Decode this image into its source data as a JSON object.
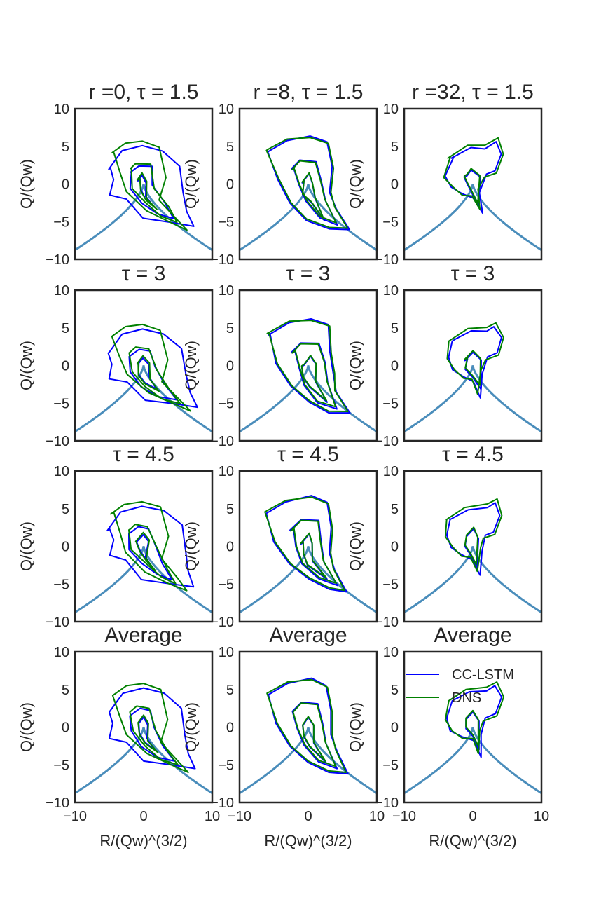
{
  "chart_data": {
    "type": "line",
    "description_free": true,
    "row_titles": [
      [
        "r =0, τ = 1.5",
        "r =8, τ = 1.5",
        "r =32, τ = 1.5"
      ],
      [
        "τ = 3",
        "τ = 3",
        "τ = 3"
      ],
      [
        "τ = 4.5",
        "τ = 4.5",
        "τ = 4.5"
      ],
      [
        "Average",
        "Average",
        "Average"
      ]
    ],
    "xlabel": "R/(Qw)^(3/2)",
    "ylabel": "Q/(Qw)",
    "xlim": [
      -10,
      10
    ],
    "ylim": [
      -10,
      10
    ],
    "xticks": [
      "−10",
      "0",
      "10"
    ],
    "yticks": [
      "10",
      "5",
      "0",
      "−5",
      "−10"
    ],
    "legend": {
      "location": "top-right",
      "entries": [
        {
          "name": "CC-LSTM",
          "color": "#0000ff"
        },
        {
          "name": "DNS",
          "color": "#008000"
        }
      ]
    },
    "vieillefosse_color": "#4a8dbb",
    "vieillefosse_x": [
      -10,
      -8,
      -6,
      -4,
      -3,
      -2,
      -1,
      -0.5,
      0,
      0.5,
      1,
      2,
      3,
      4,
      6,
      8,
      10
    ],
    "series_colors": {
      "CC-LSTM": "#0000ff",
      "DNS": "#008000"
    },
    "columns": [
      {
        "r": "0",
        "outer": {
          "cx": 0.5,
          "cy": 0,
          "ax": [
            -5,
            -2,
            6,
            8,
            6,
            3,
            1,
            -2
          ],
          "ay": [
            2,
            6,
            3,
            -1,
            -5,
            -5,
            -2,
            -2
          ]
        },
        "DNS": [
          [
            [
              -4.5,
              4.2
            ],
            [
              -2.5,
              5.5
            ],
            [
              0,
              5.8
            ],
            [
              2.5,
              5
            ],
            [
              3.5,
              1
            ],
            [
              2.5,
              -2
            ],
            [
              5,
              -4.5
            ],
            [
              6.5,
              -6
            ],
            [
              4,
              -5
            ],
            [
              0.5,
              -3.5
            ],
            [
              -2.5,
              -1
            ],
            [
              -3.5,
              1.5
            ],
            [
              -4.5,
              4.2
            ]
          ],
          [
            [
              -2,
              2
            ],
            [
              -1,
              2.8
            ],
            [
              0.8,
              2.5
            ],
            [
              1.8,
              -0.5
            ],
            [
              3.5,
              -3.2
            ],
            [
              5,
              -5
            ],
            [
              2.5,
              -4.3
            ],
            [
              0.2,
              -2.5
            ],
            [
              -1.5,
              -0.5
            ],
            [
              -2,
              2
            ]
          ],
          [
            [
              -0.8,
              0.6
            ],
            [
              0,
              1.6
            ],
            [
              0.7,
              0.5
            ],
            [
              0.6,
              -1.8
            ],
            [
              2,
              -3.3
            ],
            [
              0.3,
              -2.2
            ],
            [
              -0.6,
              -1
            ],
            [
              -0.8,
              0.6
            ]
          ]
        ],
        "CC-LSTM": [
          [
            [
              -5,
              2
            ],
            [
              -3,
              4.5
            ],
            [
              0,
              5.2
            ],
            [
              3,
              4.5
            ],
            [
              5.5,
              2.5
            ],
            [
              6,
              -1
            ],
            [
              6.5,
              -3.5
            ],
            [
              7.5,
              -5.5
            ],
            [
              4,
              -5
            ],
            [
              0,
              -4.5
            ],
            [
              -2.5,
              -2
            ],
            [
              -5,
              -1.5
            ],
            [
              -4.5,
              0.5
            ],
            [
              -5,
              2
            ]
          ],
          [
            [
              -2,
              1.5
            ],
            [
              -0.5,
              2.5
            ],
            [
              1,
              2.2
            ],
            [
              1.5,
              0
            ],
            [
              2.8,
              -2.5
            ],
            [
              4.5,
              -4.5
            ],
            [
              2,
              -4
            ],
            [
              -0.3,
              -2.6
            ],
            [
              -1.8,
              -0.5
            ],
            [
              -2,
              1.5
            ]
          ],
          [
            [
              -0.7,
              0.5
            ],
            [
              0,
              1.3
            ],
            [
              0.6,
              0.3
            ],
            [
              0.5,
              -1.5
            ],
            [
              1.6,
              -3
            ],
            [
              0.2,
              -2
            ],
            [
              -0.6,
              -0.8
            ],
            [
              -0.7,
              0.5
            ]
          ]
        ]
      },
      {
        "r": "8",
        "DNS": [
          [
            [
              -6,
              4.5
            ],
            [
              -3,
              6
            ],
            [
              0.5,
              6.3
            ],
            [
              2.8,
              5.3
            ],
            [
              3.5,
              2
            ],
            [
              3.5,
              -1
            ],
            [
              4,
              -3
            ],
            [
              5.5,
              -6
            ],
            [
              3,
              -5.8
            ],
            [
              0,
              -4.5
            ],
            [
              -2.5,
              -2.5
            ],
            [
              -4.5,
              0.5
            ],
            [
              -6,
              4.5
            ]
          ],
          [
            [
              -2.2,
              2
            ],
            [
              -1,
              3.2
            ],
            [
              1.3,
              3
            ],
            [
              2,
              0.5
            ],
            [
              2.5,
              -2
            ],
            [
              4,
              -5.2
            ],
            [
              1.5,
              -4.4
            ],
            [
              -0.5,
              -2.3
            ],
            [
              -1.5,
              -0.2
            ],
            [
              -2.2,
              2
            ]
          ],
          [
            [
              -0.8,
              0.3
            ],
            [
              0,
              1.4
            ],
            [
              0.8,
              0.3
            ],
            [
              0.8,
              -2
            ],
            [
              2.5,
              -4.5
            ],
            [
              0.2,
              -2.5
            ],
            [
              -0.6,
              -1.2
            ],
            [
              -0.8,
              0.3
            ]
          ]
        ],
        "CC-LSTM": [
          [
            [
              -5.8,
              4.3
            ],
            [
              -3,
              5.8
            ],
            [
              0.5,
              6.5
            ],
            [
              2.6,
              5.5
            ],
            [
              3.3,
              2.2
            ],
            [
              3.3,
              -1
            ],
            [
              4.2,
              -3.2
            ],
            [
              5.8,
              -6.2
            ],
            [
              3,
              -6
            ],
            [
              0,
              -4.7
            ],
            [
              -2.7,
              -2.5
            ],
            [
              -4.7,
              0.5
            ],
            [
              -5.8,
              4.3
            ]
          ],
          [
            [
              -2.3,
              2.1
            ],
            [
              -1,
              3.3
            ],
            [
              1.4,
              3.1
            ],
            [
              2.1,
              0.5
            ],
            [
              2.6,
              -2.2
            ],
            [
              4.2,
              -5.5
            ],
            [
              1.5,
              -4.6
            ],
            [
              -0.6,
              -2.4
            ],
            [
              -1.6,
              -0.2
            ],
            [
              -2.3,
              2.1
            ]
          ],
          [
            [
              -0.8,
              0.2
            ],
            [
              0,
              1.3
            ],
            [
              0.8,
              0.2
            ],
            [
              0.8,
              -2.1
            ],
            [
              2.6,
              -4.7
            ],
            [
              0.2,
              -2.6
            ],
            [
              -0.6,
              -1.3
            ],
            [
              -0.8,
              0.2
            ]
          ]
        ]
      },
      {
        "r": "32",
        "DNS": [
          [
            [
              -3.5,
              3.5
            ],
            [
              -1,
              5
            ],
            [
              2,
              5.3
            ],
            [
              3.5,
              6
            ],
            [
              4.5,
              4
            ],
            [
              3.5,
              1.5
            ],
            [
              1.5,
              0.8
            ],
            [
              1,
              -0.5
            ],
            [
              0.8,
              -3.5
            ],
            [
              0,
              -1.5
            ],
            [
              -1.5,
              -1.5
            ],
            [
              -3,
              -0.5
            ],
            [
              -4,
              1
            ],
            [
              -3.5,
              3.5
            ]
          ],
          [
            [
              -1,
              1.2
            ],
            [
              0,
              2.2
            ],
            [
              0.8,
              1
            ],
            [
              0.8,
              -2.5
            ],
            [
              0,
              -1
            ],
            [
              -1,
              0
            ],
            [
              -1,
              1.2
            ]
          ]
        ],
        "CC-LSTM": [
          [
            [
              -3,
              3.5
            ],
            [
              -0.5,
              4.7
            ],
            [
              2,
              4.8
            ],
            [
              3.2,
              5.5
            ],
            [
              4.2,
              4
            ],
            [
              3.3,
              1.8
            ],
            [
              1.8,
              1.2
            ],
            [
              1.2,
              -1
            ],
            [
              1.2,
              -4
            ],
            [
              0.2,
              -1.8
            ],
            [
              -1.5,
              -1.3
            ],
            [
              -3.3,
              -0.5
            ],
            [
              -3.8,
              1.2
            ],
            [
              -3,
              3.5
            ]
          ],
          [
            [
              -1,
              1
            ],
            [
              0,
              2
            ],
            [
              0.9,
              0.8
            ],
            [
              0.9,
              -3
            ],
            [
              0,
              -1.2
            ],
            [
              -1,
              -0.2
            ],
            [
              -1,
              1
            ]
          ]
        ]
      }
    ]
  }
}
